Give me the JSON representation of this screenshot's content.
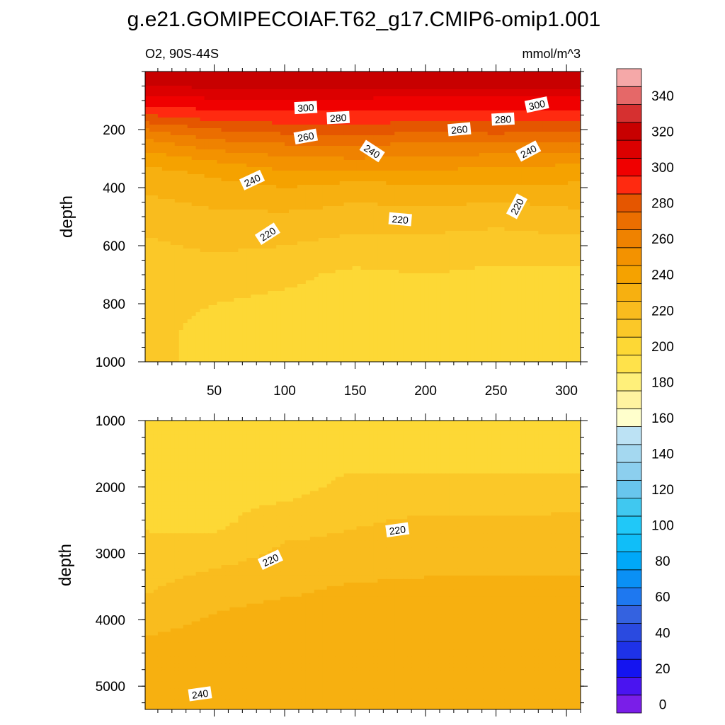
{
  "title": "g.e21.GOMIPECOIAF.T62_g17.CMIP6-omip1.001",
  "panel_left_label": "O2, 90S-44S",
  "panel_right_label": "mmol/m^3",
  "colors": {
    "levels": [
      0,
      10,
      20,
      30,
      40,
      50,
      60,
      70,
      80,
      90,
      100,
      110,
      120,
      130,
      140,
      150,
      160,
      170,
      180,
      190,
      200,
      210,
      220,
      230,
      240,
      250,
      260,
      270,
      280,
      290,
      300,
      310,
      320,
      330,
      340,
      350,
      360
    ],
    "fills": [
      "#7a1ee8",
      "#4a14f0",
      "#1414f0",
      "#1e32e8",
      "#2a4ae0",
      "#3462e0",
      "#1e78f0",
      "#0a90f5",
      "#00a8f8",
      "#10bef8",
      "#20c8f8",
      "#40c8f0",
      "#68c6ee",
      "#8ccfee",
      "#a4d8f0",
      "#bce2f4",
      "#ffffcc",
      "#fff3a0",
      "#fff07a",
      "#ffe24a",
      "#fdd835",
      "#fbc828",
      "#f9bc1e",
      "#f7b010",
      "#f5a200",
      "#f39200",
      "#ef8200",
      "#eb6e00",
      "#e55600",
      "#ff2a10",
      "#f00000",
      "#dc0000",
      "#c80000",
      "#d63030",
      "#e56868",
      "#f5a8a8"
    ]
  },
  "colorbar": {
    "labels": [
      "0",
      "20",
      "40",
      "60",
      "80",
      "100",
      "120",
      "140",
      "160",
      "180",
      "200",
      "220",
      "240",
      "260",
      "280",
      "300",
      "320",
      "340"
    ]
  },
  "chart_data": [
    {
      "type": "contour",
      "panel": "upper",
      "variable": "O2",
      "units": "mmol/m^3",
      "ylabel": "depth",
      "xlim": [
        1,
        310
      ],
      "ylim": [
        1000,
        0
      ],
      "x_ticks": [
        "50",
        "100",
        "150",
        "200",
        "250",
        "300"
      ],
      "y_ticks": [
        "200",
        "400",
        "600",
        "800",
        "1000"
      ],
      "x": [
        1,
        50,
        100,
        150,
        200,
        250,
        310
      ],
      "depth": [
        0,
        50,
        100,
        150,
        200,
        250,
        300,
        350,
        400,
        450,
        500,
        600,
        700,
        800,
        900,
        1000
      ],
      "values": [
        [
          325,
          325,
          325,
          325,
          325,
          325,
          325
        ],
        [
          320,
          322,
          322,
          322,
          322,
          322,
          322
        ],
        [
          305,
          308,
          308,
          308,
          306,
          306,
          306
        ],
        [
          290,
          296,
          298,
          298,
          296,
          296,
          296
        ],
        [
          270,
          280,
          284,
          286,
          282,
          284,
          282
        ],
        [
          255,
          266,
          270,
          272,
          268,
          270,
          268
        ],
        [
          245,
          252,
          258,
          260,
          258,
          256,
          254
        ],
        [
          236,
          242,
          248,
          246,
          248,
          246,
          244
        ],
        [
          232,
          236,
          240,
          236,
          238,
          238,
          238
        ],
        [
          228,
          232,
          234,
          230,
          232,
          230,
          232
        ],
        [
          224,
          228,
          228,
          226,
          226,
          224,
          228
        ],
        [
          218,
          222,
          220,
          216,
          216,
          214,
          216
        ],
        [
          214,
          214,
          212,
          208,
          210,
          208,
          208
        ],
        [
          212,
          210,
          208,
          206,
          206,
          204,
          204
        ],
        [
          212,
          208,
          206,
          205,
          204,
          202,
          202
        ],
        [
          212,
          208,
          206,
          205,
          204,
          202,
          202
        ]
      ],
      "contour_labels": [
        {
          "text": "300",
          "x": 115,
          "depth": 125,
          "angle": -3
        },
        {
          "text": "280",
          "x": 138,
          "depth": 160,
          "angle": -3
        },
        {
          "text": "260",
          "x": 115,
          "depth": 225,
          "angle": -10
        },
        {
          "text": "240",
          "x": 162,
          "depth": 275,
          "angle": 33
        },
        {
          "text": "240",
          "x": 77,
          "depth": 375,
          "angle": -25
        },
        {
          "text": "220",
          "x": 88,
          "depth": 560,
          "angle": -33
        },
        {
          "text": "220",
          "x": 182,
          "depth": 510,
          "angle": 5
        },
        {
          "text": "260",
          "x": 224,
          "depth": 200,
          "angle": -5
        },
        {
          "text": "280",
          "x": 255,
          "depth": 165,
          "angle": -3
        },
        {
          "text": "300",
          "x": 279,
          "depth": 115,
          "angle": -12
        },
        {
          "text": "240",
          "x": 273,
          "depth": 275,
          "angle": -28
        },
        {
          "text": "220",
          "x": 265,
          "depth": 465,
          "angle": -62
        }
      ]
    },
    {
      "type": "contour",
      "panel": "lower",
      "variable": "O2",
      "units": "mmol/m^3",
      "ylabel": "depth",
      "xlim": [
        1,
        310
      ],
      "ylim": [
        5350,
        1000
      ],
      "y_ticks": [
        "1000",
        "2000",
        "3000",
        "4000",
        "5000"
      ],
      "x": [
        1,
        50,
        100,
        150,
        200,
        250,
        310
      ],
      "depth": [
        1000,
        1500,
        2000,
        2500,
        3000,
        3500,
        4000,
        4500,
        5000,
        5350
      ],
      "values": [
        [
          206,
          206,
          206,
          205,
          205,
          204,
          204
        ],
        [
          208,
          207,
          206,
          205,
          205,
          205,
          205
        ],
        [
          209,
          208,
          205,
          214,
          214,
          213,
          213
        ],
        [
          209,
          207,
          216,
          219,
          221,
          221,
          222
        ],
        [
          212,
          215,
          222,
          223,
          225,
          225,
          226
        ],
        [
          218,
          226,
          228,
          231,
          232,
          232,
          232
        ],
        [
          226,
          231,
          234,
          234,
          234,
          234,
          234
        ],
        [
          234,
          236,
          236,
          236,
          236,
          236,
          236
        ],
        [
          237,
          238,
          238,
          238,
          238,
          238,
          238
        ],
        [
          240,
          240,
          238,
          238,
          238,
          238,
          238
        ]
      ],
      "contour_labels": [
        {
          "text": "220",
          "x": 180,
          "depth": 2650,
          "angle": -8
        },
        {
          "text": "220",
          "x": 90,
          "depth": 3100,
          "angle": -25
        },
        {
          "text": "240",
          "x": 40,
          "depth": 5120,
          "angle": -8
        }
      ]
    }
  ]
}
